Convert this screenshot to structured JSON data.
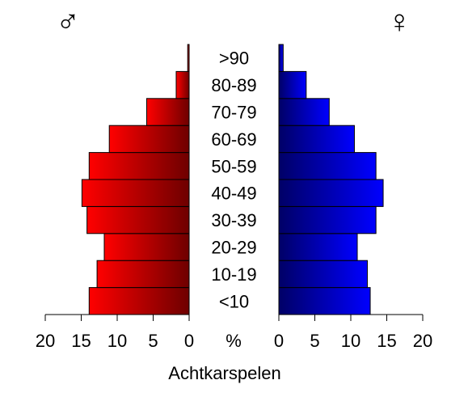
{
  "chart_data": {
    "type": "bar",
    "layout": "population-pyramid",
    "categories": [
      "<10",
      "10-19",
      "20-29",
      "30-39",
      "40-49",
      "50-59",
      "60-69",
      "70-79",
      "80-89",
      ">90"
    ],
    "series": [
      {
        "symbol": "♂",
        "color": "#ff0000",
        "color_dark": "#6e0000",
        "side": "left",
        "values": [
          13.9,
          12.8,
          11.8,
          14.2,
          14.9,
          13.9,
          11.1,
          5.9,
          1.8,
          0.2
        ]
      },
      {
        "symbol": "♀",
        "color": "#0000ff",
        "color_dark": "#000066",
        "side": "right",
        "values": [
          12.7,
          12.3,
          10.9,
          13.5,
          14.5,
          13.5,
          10.5,
          7.0,
          3.8,
          0.6
        ]
      }
    ],
    "xlim": [
      0,
      20
    ],
    "xticks": [
      0,
      5,
      10,
      15,
      20
    ],
    "x_unit_label": "%",
    "xlabel": "Achtkarspelen",
    "grid": false
  }
}
